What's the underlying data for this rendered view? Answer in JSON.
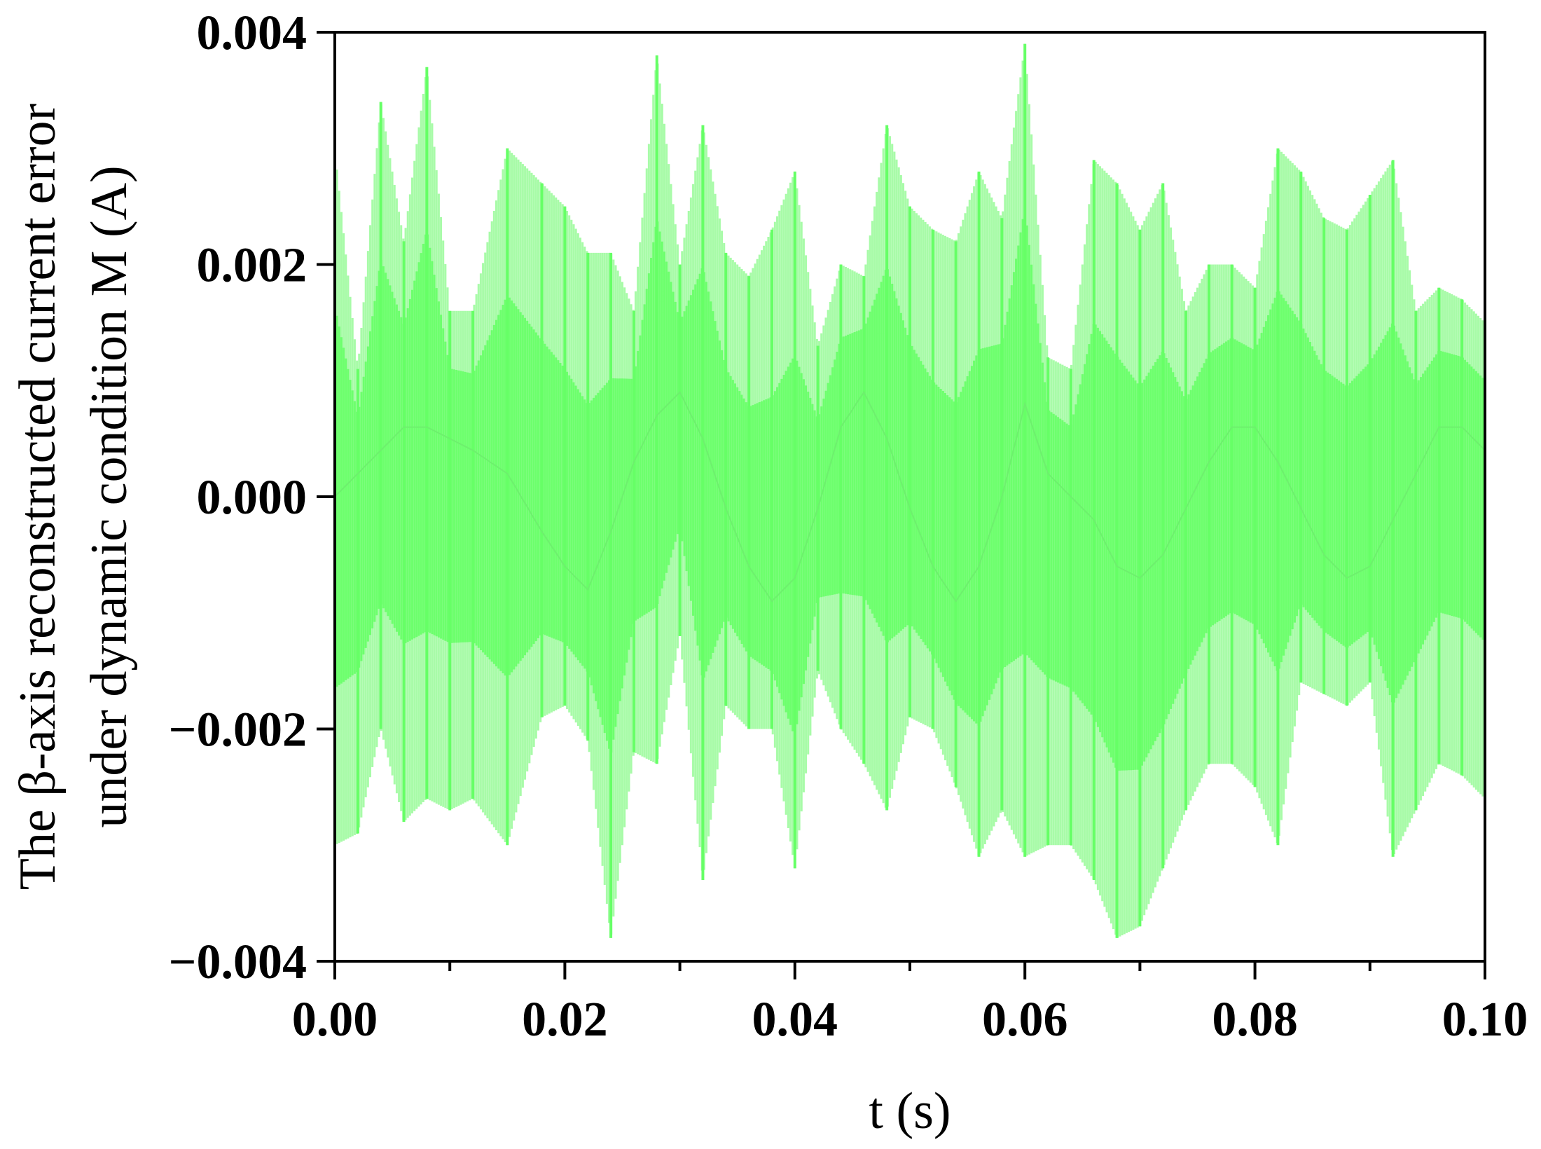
{
  "chart_data": {
    "type": "line",
    "xlabel": "t (s)",
    "ylabel_lines": [
      "The β-axis reconstructed current error",
      "under dynamic condition M (A)"
    ],
    "xlim": [
      0.0,
      0.1
    ],
    "ylim": [
      -0.004,
      0.004
    ],
    "xticks": [
      0.0,
      0.02,
      0.04,
      0.06,
      0.08,
      0.1
    ],
    "xtick_labels": [
      "0.00",
      "0.02",
      "0.04",
      "0.06",
      "0.08",
      "0.10"
    ],
    "yticks": [
      -0.004,
      -0.002,
      0.0,
      0.002,
      0.004
    ],
    "ytick_labels": [
      "−0.004",
      "−0.002",
      "0.000",
      "0.002",
      "0.004"
    ],
    "grid": false,
    "series_color": "#66ff66",
    "series": [
      {
        "x": [
          0.0,
          0.002,
          0.004,
          0.006,
          0.008,
          0.01,
          0.012,
          0.015,
          0.018,
          0.02,
          0.022,
          0.024,
          0.026,
          0.028,
          0.03,
          0.032,
          0.034,
          0.036,
          0.038,
          0.04,
          0.042,
          0.044,
          0.046,
          0.048,
          0.05,
          0.052,
          0.054,
          0.056,
          0.058,
          0.06,
          0.062,
          0.064,
          0.066,
          0.068,
          0.07,
          0.072,
          0.074,
          0.076,
          0.078,
          0.08,
          0.082,
          0.084,
          0.086,
          0.088,
          0.09,
          0.092,
          0.094,
          0.096,
          0.098,
          0.1
        ],
        "upper": [
          0.003,
          0.0011,
          0.0034,
          0.0022,
          0.0037,
          0.0016,
          0.0016,
          0.003,
          0.0027,
          0.0025,
          0.0021,
          0.0021,
          0.0016,
          0.0038,
          0.002,
          0.0032,
          0.0021,
          0.0019,
          0.0023,
          0.0028,
          0.0013,
          0.002,
          0.0019,
          0.0032,
          0.0025,
          0.0023,
          0.0022,
          0.0028,
          0.0024,
          0.0039,
          0.0012,
          0.0011,
          0.0029,
          0.0027,
          0.0023,
          0.0027,
          0.0016,
          0.002,
          0.002,
          0.0018,
          0.003,
          0.0028,
          0.0024,
          0.0023,
          0.0026,
          0.0029,
          0.0016,
          0.0018,
          0.0017,
          0.0015
        ],
        "lower": [
          -0.003,
          -0.0029,
          -0.002,
          -0.0028,
          -0.0026,
          -0.0027,
          -0.0026,
          -0.003,
          -0.0019,
          -0.0018,
          -0.0021,
          -0.0038,
          -0.0022,
          -0.0023,
          -0.0012,
          -0.0033,
          -0.0018,
          -0.002,
          -0.002,
          -0.0032,
          -0.0015,
          -0.002,
          -0.0023,
          -0.0027,
          -0.0019,
          -0.002,
          -0.0025,
          -0.0031,
          -0.0027,
          -0.0031,
          -0.003,
          -0.003,
          -0.0033,
          -0.0038,
          -0.0037,
          -0.0032,
          -0.0027,
          -0.0023,
          -0.0023,
          -0.0025,
          -0.003,
          -0.0016,
          -0.0017,
          -0.0018,
          -0.0016,
          -0.0031,
          -0.0027,
          -0.0023,
          -0.0024,
          -0.0026
        ],
        "mid": [
          0.0,
          0.0002,
          0.0004,
          0.0006,
          0.0006,
          0.0005,
          0.0004,
          0.0002,
          -0.0003,
          -0.0006,
          -0.0008,
          -0.0003,
          0.0003,
          0.0007,
          0.0009,
          0.0005,
          -0.0001,
          -0.0006,
          -0.0009,
          -0.0007,
          -0.0001,
          0.0006,
          0.0009,
          0.0005,
          -0.0001,
          -0.0006,
          -0.0009,
          -0.0006,
          0.0,
          0.0008,
          0.0002,
          0.0,
          -0.0002,
          -0.0006,
          -0.0007,
          -0.0005,
          -0.0001,
          0.0003,
          0.0006,
          0.0006,
          0.0003,
          -0.0001,
          -0.0005,
          -0.0007,
          -0.0006,
          -0.0002,
          0.0002,
          0.0006,
          0.0006,
          0.0004
        ]
      }
    ]
  }
}
